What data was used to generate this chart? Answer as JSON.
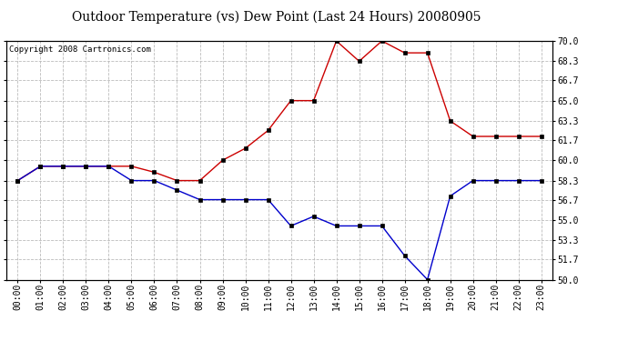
{
  "title": "Outdoor Temperature (vs) Dew Point (Last 24 Hours) 20080905",
  "copyright": "Copyright 2008 Cartronics.com",
  "x_labels": [
    "00:00",
    "01:00",
    "02:00",
    "03:00",
    "04:00",
    "05:00",
    "06:00",
    "07:00",
    "08:00",
    "09:00",
    "10:00",
    "11:00",
    "12:00",
    "13:00",
    "14:00",
    "15:00",
    "16:00",
    "17:00",
    "18:00",
    "19:00",
    "20:00",
    "21:00",
    "22:00",
    "23:00"
  ],
  "temp_data": [
    58.3,
    59.5,
    59.5,
    59.5,
    59.5,
    59.5,
    59.0,
    58.3,
    58.3,
    60.0,
    61.0,
    62.5,
    65.0,
    65.0,
    70.0,
    68.3,
    70.0,
    69.0,
    69.0,
    63.3,
    62.0,
    62.0,
    62.0,
    62.0
  ],
  "dew_data": [
    58.3,
    59.5,
    59.5,
    59.5,
    59.5,
    58.3,
    58.3,
    57.5,
    56.7,
    56.7,
    56.7,
    56.7,
    54.5,
    55.3,
    54.5,
    54.5,
    54.5,
    52.0,
    50.0,
    57.0,
    58.3,
    58.3,
    58.3,
    58.3
  ],
  "temp_color": "#cc0000",
  "dew_color": "#0000cc",
  "ylim": [
    50.0,
    70.0
  ],
  "yticks": [
    50.0,
    51.7,
    53.3,
    55.0,
    56.7,
    58.3,
    60.0,
    61.7,
    63.3,
    65.0,
    66.7,
    68.3,
    70.0
  ],
  "bg_color": "#ffffff",
  "plot_bg_color": "#ffffff",
  "grid_color": "#bbbbbb",
  "title_fontsize": 10,
  "copyright_fontsize": 6.5,
  "tick_fontsize": 7
}
